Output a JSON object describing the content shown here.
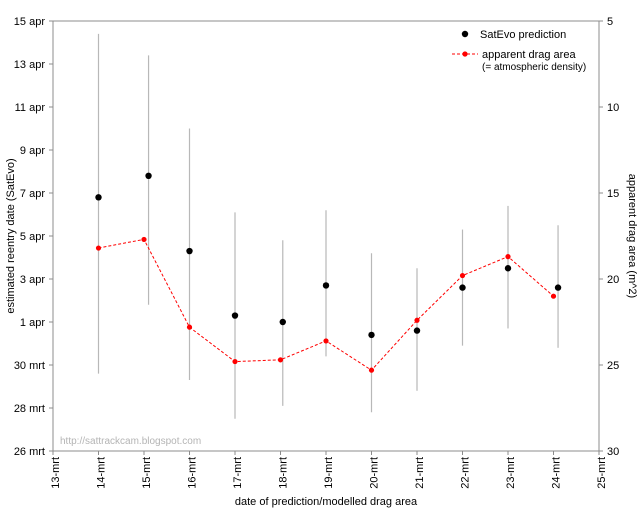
{
  "chart_data": {
    "type": "scatter",
    "title": "",
    "xlabel": "date of prediction/modelled drag area",
    "ylabel_left": "estimated reentry date (SatEvo)",
    "ylabel_right": "apparent drag area (m^2)",
    "x_ticks": [
      "13-mrt",
      "14-mrt",
      "15-mrt",
      "16-mrt",
      "17-mrt",
      "18-mrt",
      "19-mrt",
      "20-mrt",
      "21-mrt",
      "22-mrt",
      "23-mrt",
      "24-mrt",
      "25-mrt"
    ],
    "xlim": [
      13,
      25
    ],
    "ylim_left_days": [
      0,
      20
    ],
    "y_left_ticks": [
      {
        "days": 0,
        "label": "26 mrt"
      },
      {
        "days": 2,
        "label": "28 mrt"
      },
      {
        "days": 4,
        "label": "30 mrt"
      },
      {
        "days": 6,
        "label": "1 apr"
      },
      {
        "days": 8,
        "label": "3 apr"
      },
      {
        "days": 10,
        "label": "5 apr"
      },
      {
        "days": 12,
        "label": "7 apr"
      },
      {
        "days": 14,
        "label": "9 apr"
      },
      {
        "days": 16,
        "label": "11 apr"
      },
      {
        "days": 18,
        "label": "13 apr"
      },
      {
        "days": 20,
        "label": "15 apr"
      }
    ],
    "ylim_right": [
      5,
      30
    ],
    "y_right_reversed": true,
    "y_right_ticks": [
      5,
      10,
      15,
      20,
      25,
      30
    ],
    "legend_position": "top-right",
    "watermark": "http://sattrackcam.blogspot.com",
    "series": [
      {
        "name": "SatEvo prediction",
        "axis": "left",
        "color": "#000000",
        "points": [
          {
            "x": 14.0,
            "y": 11.8,
            "low": 3.6,
            "high": 19.4
          },
          {
            "x": 15.1,
            "y": 12.8,
            "low": 6.8,
            "high": 18.4
          },
          {
            "x": 16.0,
            "y": 9.3,
            "low": 3.3,
            "high": 15.0
          },
          {
            "x": 17.0,
            "y": 6.3,
            "low": 1.5,
            "high": 11.1
          },
          {
            "x": 18.05,
            "y": 6.0,
            "low": 2.1,
            "high": 9.8
          },
          {
            "x": 19.0,
            "y": 7.7,
            "low": 4.4,
            "high": 11.2
          },
          {
            "x": 20.0,
            "y": 5.4,
            "low": 1.8,
            "high": 9.2
          },
          {
            "x": 21.0,
            "y": 5.6,
            "low": 2.8,
            "high": 8.5
          },
          {
            "x": 22.0,
            "y": 7.6,
            "low": 4.9,
            "high": 10.3
          },
          {
            "x": 23.0,
            "y": 8.5,
            "low": 5.7,
            "high": 11.4
          },
          {
            "x": 24.1,
            "y": 7.6,
            "low": 4.8,
            "high": 10.5
          }
        ]
      },
      {
        "name": "apparent drag area",
        "subtitle": "(= atmospheric density)",
        "axis": "right",
        "color": "#ff0000",
        "style": "dashed",
        "points": [
          {
            "x": 14.0,
            "y": 18.2
          },
          {
            "x": 15.0,
            "y": 17.7
          },
          {
            "x": 16.0,
            "y": 22.8
          },
          {
            "x": 17.0,
            "y": 24.8
          },
          {
            "x": 18.0,
            "y": 24.7
          },
          {
            "x": 19.0,
            "y": 23.6
          },
          {
            "x": 20.0,
            "y": 25.3
          },
          {
            "x": 21.0,
            "y": 22.4
          },
          {
            "x": 22.0,
            "y": 19.8
          },
          {
            "x": 23.0,
            "y": 18.7
          },
          {
            "x": 24.0,
            "y": 21.0
          }
        ]
      }
    ]
  }
}
